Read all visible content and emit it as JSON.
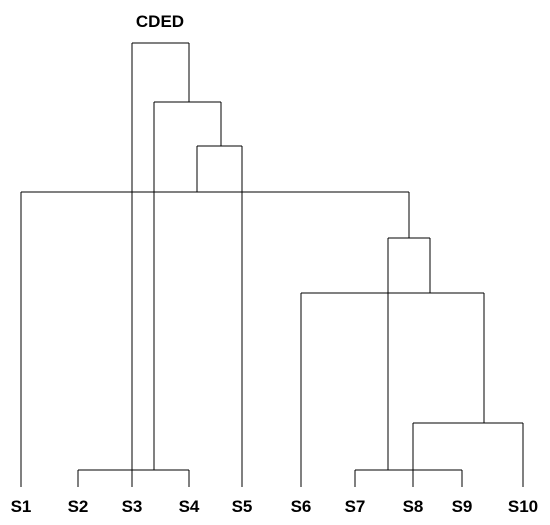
{
  "title": "CDED",
  "leaves": [
    "S1",
    "S2",
    "S3",
    "S4",
    "S5",
    "S6",
    "S7",
    "S8",
    "S9",
    "S10"
  ],
  "colors": {
    "line": "#000000",
    "text": "#000000",
    "background": "#ffffff"
  }
}
